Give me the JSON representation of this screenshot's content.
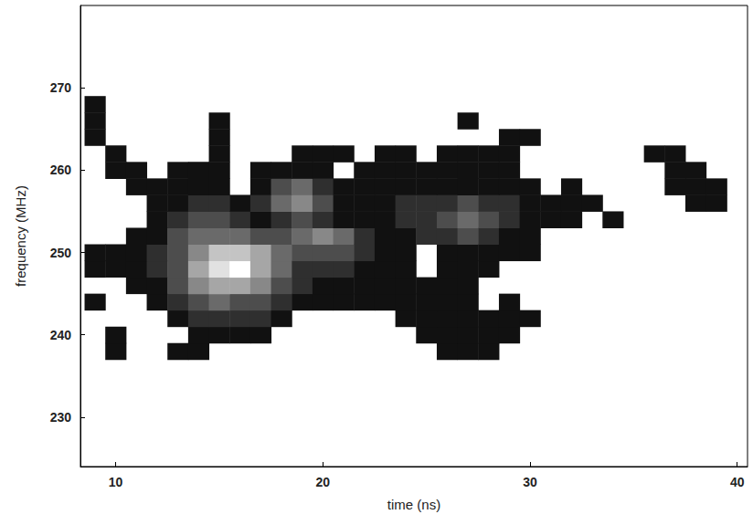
{
  "chart_data": {
    "type": "heatmap",
    "x_label": "time (ns)",
    "y_label": "frequency (MHz)",
    "xlim": [
      8.3,
      40.5
    ],
    "ylim": [
      224,
      280
    ],
    "xticks": [
      10,
      20,
      30,
      40
    ],
    "yticks": [
      230,
      240,
      250,
      260,
      270
    ],
    "grid": false,
    "x": [
      9,
      10,
      11,
      12,
      13,
      14,
      15,
      16,
      17,
      18,
      19,
      20,
      21,
      22,
      23,
      24,
      25,
      26,
      27,
      28,
      29,
      30,
      31,
      32,
      33,
      34,
      35,
      36,
      37,
      38,
      39,
      40
    ],
    "y": [
      236,
      238,
      240,
      242,
      244,
      246,
      248,
      250,
      252,
      254,
      256,
      258,
      260,
      262,
      264,
      266,
      268
    ],
    "z": [
      [
        0,
        0,
        0,
        0,
        0,
        0,
        0,
        0,
        0,
        0,
        0,
        0,
        0,
        0,
        0,
        0,
        0,
        0,
        0,
        0,
        0,
        0,
        0,
        0,
        0,
        0,
        0,
        0,
        0,
        0,
        0,
        0
      ],
      [
        0,
        1,
        0,
        0,
        1,
        1,
        0,
        0,
        0,
        0,
        0,
        0,
        0,
        0,
        0,
        0,
        0,
        1,
        1,
        1,
        0,
        0,
        0,
        0,
        0,
        0,
        0,
        0,
        0,
        0,
        0,
        0
      ],
      [
        0,
        1,
        0,
        0,
        0,
        1,
        1,
        1,
        1,
        0,
        0,
        0,
        0,
        0,
        0,
        0,
        1,
        1,
        1,
        1,
        1,
        0,
        0,
        0,
        0,
        0,
        0,
        0,
        0,
        0,
        0,
        0
      ],
      [
        0,
        0,
        0,
        0,
        1,
        2,
        2,
        2,
        2,
        1,
        0,
        0,
        0,
        0,
        0,
        1,
        1,
        1,
        1,
        1,
        1,
        1,
        0,
        0,
        0,
        0,
        0,
        0,
        0,
        0,
        0,
        0
      ],
      [
        1,
        0,
        0,
        1,
        2,
        3,
        4,
        3,
        3,
        2,
        1,
        1,
        1,
        1,
        1,
        1,
        1,
        1,
        1,
        0,
        1,
        0,
        0,
        0,
        0,
        0,
        0,
        0,
        0,
        0,
        0,
        0
      ],
      [
        0,
        0,
        1,
        1,
        3,
        5,
        6,
        6,
        5,
        3,
        2,
        1,
        1,
        1,
        1,
        1,
        1,
        1,
        1,
        0,
        0,
        0,
        0,
        0,
        0,
        0,
        0,
        0,
        0,
        0,
        0,
        0
      ],
      [
        1,
        1,
        1,
        2,
        3,
        6,
        8,
        9,
        6,
        4,
        2,
        2,
        2,
        1,
        1,
        1,
        0,
        1,
        1,
        1,
        0,
        0,
        0,
        0,
        0,
        0,
        0,
        0,
        0,
        0,
        0,
        0
      ],
      [
        1,
        1,
        1,
        2,
        3,
        5,
        7,
        7,
        6,
        4,
        3,
        3,
        3,
        2,
        1,
        1,
        0,
        1,
        1,
        1,
        1,
        1,
        0,
        0,
        0,
        0,
        0,
        0,
        0,
        0,
        0,
        0
      ],
      [
        0,
        0,
        1,
        1,
        3,
        4,
        4,
        4,
        3,
        3,
        4,
        5,
        4,
        2,
        1,
        1,
        2,
        2,
        3,
        2,
        1,
        1,
        0,
        0,
        0,
        0,
        0,
        0,
        0,
        0,
        0,
        0
      ],
      [
        0,
        0,
        0,
        1,
        2,
        3,
        3,
        2,
        1,
        2,
        3,
        2,
        1,
        1,
        1,
        2,
        2,
        3,
        4,
        3,
        2,
        1,
        1,
        1,
        0,
        1,
        0,
        0,
        0,
        0,
        0,
        0
      ],
      [
        0,
        0,
        0,
        1,
        1,
        2,
        2,
        1,
        2,
        4,
        5,
        3,
        1,
        1,
        1,
        2,
        2,
        2,
        3,
        2,
        2,
        1,
        1,
        1,
        1,
        0,
        0,
        0,
        0,
        1,
        1,
        0
      ],
      [
        0,
        0,
        1,
        1,
        1,
        1,
        1,
        0,
        1,
        3,
        4,
        2,
        1,
        1,
        1,
        1,
        1,
        1,
        1,
        1,
        1,
        1,
        0,
        1,
        0,
        0,
        0,
        0,
        1,
        1,
        1,
        0
      ],
      [
        0,
        1,
        1,
        0,
        1,
        1,
        1,
        0,
        1,
        1,
        1,
        1,
        0,
        1,
        1,
        1,
        1,
        1,
        1,
        1,
        1,
        0,
        0,
        0,
        0,
        0,
        0,
        0,
        1,
        1,
        0,
        0
      ],
      [
        0,
        1,
        0,
        0,
        0,
        0,
        1,
        0,
        0,
        0,
        1,
        1,
        1,
        0,
        1,
        1,
        0,
        1,
        1,
        1,
        1,
        0,
        0,
        0,
        0,
        0,
        0,
        1,
        1,
        0,
        0,
        0
      ],
      [
        1,
        0,
        0,
        0,
        0,
        0,
        1,
        0,
        0,
        0,
        0,
        0,
        0,
        0,
        0,
        0,
        0,
        0,
        0,
        0,
        1,
        1,
        0,
        0,
        0,
        0,
        0,
        0,
        0,
        0,
        0,
        0
      ],
      [
        1,
        0,
        0,
        0,
        0,
        0,
        1,
        0,
        0,
        0,
        0,
        0,
        0,
        0,
        0,
        0,
        0,
        0,
        1,
        0,
        0,
        0,
        0,
        0,
        0,
        0,
        0,
        0,
        0,
        0,
        0,
        0
      ],
      [
        1,
        0,
        0,
        0,
        0,
        0,
        0,
        0,
        0,
        0,
        0,
        0,
        0,
        0,
        0,
        0,
        0,
        0,
        0,
        0,
        0,
        0,
        0,
        0,
        0,
        0,
        0,
        0,
        0,
        0,
        0,
        0
      ]
    ]
  }
}
